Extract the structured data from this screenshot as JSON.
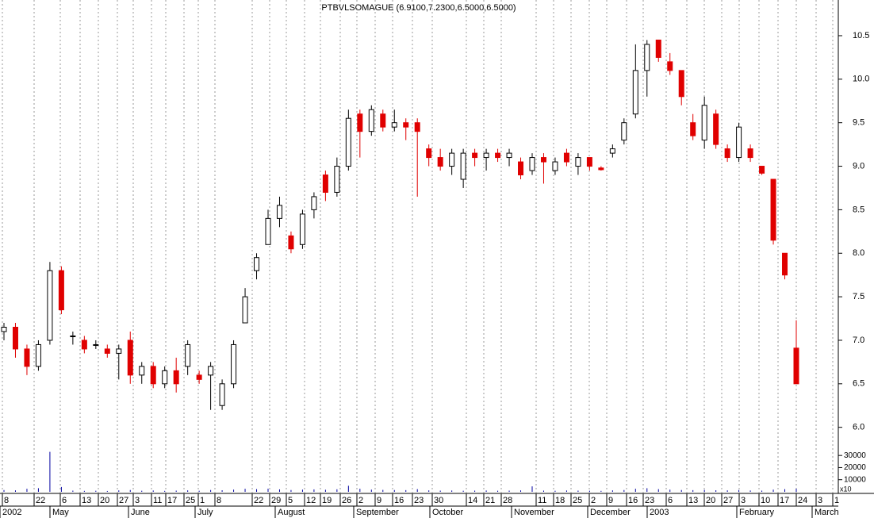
{
  "chart_data": {
    "type": "candlestick",
    "title": "PTBVLSOMAGUE (6.9100,7.2300,6.5000,6.5000)",
    "open": [
      7.1,
      7.15,
      6.9,
      6.7,
      7.0,
      7.8,
      7.05,
      7.0,
      6.95,
      6.9,
      6.85,
      7.0,
      6.6,
      6.7,
      6.5,
      6.65,
      6.7,
      6.6,
      6.6,
      6.25,
      6.5,
      7.2,
      7.8,
      8.1,
      8.4,
      8.2,
      8.1,
      8.5,
      8.9,
      8.7,
      9.0,
      9.6,
      9.4,
      9.6,
      9.45,
      9.5,
      9.5,
      9.2,
      9.1,
      9.0,
      8.85,
      9.15,
      9.1,
      9.15,
      9.1,
      9.05,
      8.95,
      9.1,
      8.95,
      9.15,
      9.0,
      9.1,
      8.98,
      9.15,
      9.3,
      9.6,
      10.1,
      10.45,
      10.2,
      10.1,
      9.5,
      9.3,
      9.6,
      9.2,
      9.1,
      9.2,
      9.0,
      8.85,
      8.0,
      6.91
    ],
    "high": [
      7.2,
      7.2,
      6.95,
      7.0,
      7.9,
      7.85,
      7.1,
      7.05,
      7.0,
      6.95,
      6.95,
      7.1,
      6.75,
      6.75,
      6.7,
      6.8,
      7.0,
      6.65,
      6.75,
      6.55,
      7.0,
      7.6,
      8.0,
      8.5,
      8.65,
      8.25,
      8.5,
      8.7,
      8.95,
      9.1,
      9.65,
      9.65,
      9.7,
      9.65,
      9.65,
      9.55,
      9.55,
      9.25,
      9.2,
      9.2,
      9.2,
      9.2,
      9.2,
      9.2,
      9.2,
      9.1,
      9.15,
      9.15,
      9.1,
      9.2,
      9.15,
      9.1,
      9.0,
      9.25,
      9.55,
      10.4,
      10.45,
      10.45,
      10.3,
      10.1,
      9.6,
      9.8,
      9.65,
      9.25,
      9.5,
      9.25,
      9.0,
      8.85,
      8.0,
      7.23
    ],
    "low": [
      7.0,
      6.8,
      6.6,
      6.65,
      6.95,
      7.3,
      6.95,
      6.85,
      6.9,
      6.8,
      6.55,
      6.5,
      6.5,
      6.45,
      6.45,
      6.4,
      6.6,
      6.5,
      6.2,
      6.2,
      6.45,
      7.2,
      7.7,
      8.1,
      8.3,
      8.0,
      8.05,
      8.4,
      8.6,
      8.65,
      8.95,
      9.1,
      9.35,
      9.4,
      9.4,
      9.3,
      8.65,
      9.0,
      8.95,
      8.9,
      8.75,
      9.0,
      8.95,
      9.05,
      9.0,
      8.85,
      8.9,
      8.8,
      8.9,
      9.0,
      8.9,
      8.95,
      8.95,
      9.1,
      9.25,
      9.55,
      9.8,
      10.2,
      10.05,
      9.7,
      9.3,
      9.2,
      9.2,
      9.05,
      9.05,
      9.05,
      8.9,
      8.1,
      7.7,
      6.5
    ],
    "close": [
      7.15,
      6.9,
      6.7,
      6.95,
      7.8,
      7.35,
      7.05,
      6.9,
      6.95,
      6.85,
      6.9,
      6.6,
      6.7,
      6.5,
      6.65,
      6.5,
      6.95,
      6.55,
      6.7,
      6.5,
      6.95,
      7.5,
      7.95,
      8.4,
      8.55,
      8.05,
      8.45,
      8.65,
      8.7,
      9.0,
      9.55,
      9.4,
      9.65,
      9.45,
      9.5,
      9.45,
      9.4,
      9.1,
      9.0,
      9.15,
      9.15,
      9.1,
      9.15,
      9.1,
      9.15,
      8.9,
      9.1,
      9.05,
      9.05,
      9.05,
      9.1,
      9.0,
      8.96,
      9.2,
      9.5,
      10.1,
      10.4,
      10.25,
      10.1,
      9.8,
      9.35,
      9.7,
      9.25,
      9.1,
      9.45,
      9.1,
      8.92,
      8.15,
      7.75,
      6.5
    ],
    "volume": [
      1500,
      1200,
      2500,
      3000,
      33000,
      4000,
      1000,
      800,
      900,
      700,
      1200,
      1500,
      900,
      1100,
      800,
      1000,
      1200,
      900,
      1500,
      1300,
      1800,
      2500,
      2200,
      2600,
      2000,
      1500,
      1800,
      2000,
      1700,
      2100,
      5000,
      2500,
      1800,
      1600,
      1500,
      1400,
      2200,
      1200,
      1000,
      1100,
      900,
      1000,
      1100,
      900,
      1000,
      1200,
      4500,
      1000,
      900,
      1100,
      1000,
      900,
      800,
      1200,
      1500,
      2500,
      3000,
      2200,
      1800,
      1500,
      1400,
      1600,
      1300,
      1200,
      1500,
      1100,
      1000,
      1800,
      2200,
      2500
    ],
    "up_color": "#000000",
    "down_color": "#e00000",
    "volume_color": "#0000a0",
    "ylim": [
      5.76,
      10.91
    ],
    "yticks": [
      {
        "value": 6.0,
        "label": "6.0"
      },
      6.5,
      {
        "value": 7.0,
        "label": "7.0"
      },
      7.5,
      {
        "value": 8.0,
        "label": "8.0"
      },
      8.5,
      {
        "value": 9.0,
        "label": "9.0"
      },
      9.5,
      {
        "value": 10.0,
        "label": "10.0"
      },
      10.5
    ],
    "volume_ylim": [
      0,
      36000
    ],
    "volume_yticks": [
      10000,
      20000,
      30000
    ],
    "volume_scale_label": "x10",
    "xticks": [
      "8",
      "22",
      "6",
      "13",
      "20",
      "27",
      "3",
      "11",
      "17",
      "25",
      "1",
      "8",
      "22",
      "29",
      "5",
      "12",
      "19",
      "26",
      "2",
      "9",
      "16",
      "23",
      "30",
      "14",
      "21",
      "28",
      "11",
      "18",
      "25",
      "2",
      "9",
      "16",
      "23",
      "6",
      "13",
      "20",
      "27",
      "3",
      "10",
      "17",
      "24",
      "3",
      "1"
    ],
    "months": [
      "2002",
      "May",
      "June",
      "July",
      "August",
      "September",
      "October",
      "November",
      "December",
      "2003",
      "February",
      "March"
    ]
  }
}
